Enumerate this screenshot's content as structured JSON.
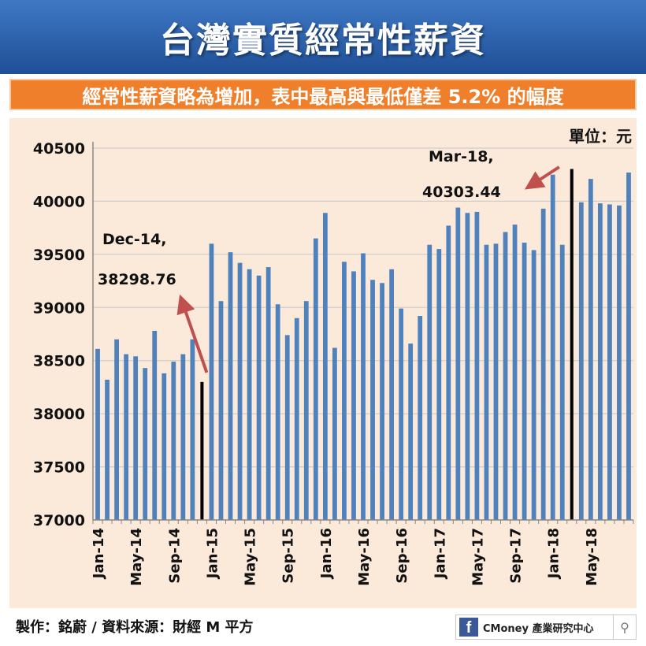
{
  "header": {
    "title": "台灣實質經常性薪資",
    "subtitle": "經常性薪資略為增加，表中最高與最低僅差 5.2% 的幅度"
  },
  "footer": {
    "credit": "製作：銘蔚 / 資料來源：財經 M 平方",
    "brand_text": "CMoney 產業研究中心",
    "fb_glyph": "f",
    "search_icon": "search-icon"
  },
  "colors": {
    "bar": "#4f81bd",
    "highlight": "#000000",
    "arrow": "#c0504d",
    "plot_bg": "#fbe9da"
  },
  "chart_data": {
    "type": "bar",
    "unit_label": "單位：元",
    "ylim": [
      37000,
      40500
    ],
    "y_ticks": [
      37000,
      37500,
      38000,
      38500,
      39000,
      39500,
      40000,
      40500
    ],
    "x_tick_labels": [
      "Jan-14",
      "May-14",
      "Sep-14",
      "Jan-15",
      "May-15",
      "Sep-15",
      "Jan-16",
      "May-16",
      "Sep-16",
      "Jan-17",
      "May-17",
      "Sep-17",
      "Jan-18",
      "May-18"
    ],
    "x_tick_every": 4,
    "grid": true,
    "categories": [
      "Jan-14",
      "Feb-14",
      "Mar-14",
      "Apr-14",
      "May-14",
      "Jun-14",
      "Jul-14",
      "Aug-14",
      "Sep-14",
      "Oct-14",
      "Nov-14",
      "Dec-14",
      "Jan-15",
      "Feb-15",
      "Mar-15",
      "Apr-15",
      "May-15",
      "Jun-15",
      "Jul-15",
      "Aug-15",
      "Sep-15",
      "Oct-15",
      "Nov-15",
      "Dec-15",
      "Jan-16",
      "Feb-16",
      "Mar-16",
      "Apr-16",
      "May-16",
      "Jun-16",
      "Jul-16",
      "Aug-16",
      "Sep-16",
      "Oct-16",
      "Nov-16",
      "Dec-16",
      "Jan-17",
      "Feb-17",
      "Mar-17",
      "Apr-17",
      "May-17",
      "Jun-17",
      "Jul-17",
      "Aug-17",
      "Sep-17",
      "Oct-17",
      "Nov-17",
      "Dec-17",
      "Jan-18",
      "Feb-18",
      "Mar-18",
      "Apr-18",
      "May-18",
      "Jun-18",
      "Jul-18",
      "Aug-18",
      "Sep-18"
    ],
    "values": [
      38610,
      38320,
      38700,
      38560,
      38540,
      38430,
      38780,
      38380,
      38490,
      38560,
      38700,
      38298.76,
      39600,
      39060,
      39520,
      39420,
      39360,
      39300,
      39380,
      39030,
      38740,
      38900,
      39060,
      39650,
      39890,
      38620,
      39430,
      39340,
      39510,
      39260,
      39230,
      39360,
      38990,
      38660,
      38920,
      39590,
      39550,
      39770,
      39940,
      39890,
      39900,
      39590,
      39600,
      39710,
      39780,
      39610,
      39540,
      39930,
      40250,
      39590,
      40303.44,
      39990,
      40210,
      39980,
      39970,
      39960,
      40270
    ],
    "highlight_indices": [
      11,
      50
    ],
    "annotations": [
      {
        "name": "annotation-min",
        "line1": "Dec-14,",
        "line2": "38298.76"
      },
      {
        "name": "annotation-max",
        "line1": "Mar-18,",
        "line2": "40303.44"
      }
    ]
  }
}
